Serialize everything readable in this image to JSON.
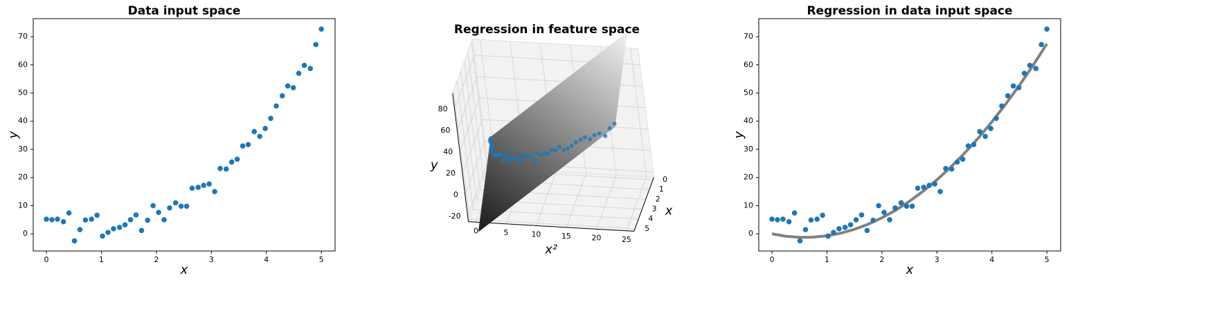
{
  "chart_data": [
    {
      "type": "scatter",
      "title": "Data input space",
      "xlabel": "x",
      "ylabel": "y",
      "color": "#1f77b4",
      "x": [
        0,
        0.1,
        0.2,
        0.31,
        0.41,
        0.51,
        0.61,
        0.71,
        0.82,
        0.92,
        1.02,
        1.12,
        1.22,
        1.33,
        1.43,
        1.53,
        1.63,
        1.73,
        1.84,
        1.94,
        2.04,
        2.14,
        2.24,
        2.35,
        2.45,
        2.55,
        2.65,
        2.76,
        2.86,
        2.96,
        3.06,
        3.16,
        3.27,
        3.37,
        3.47,
        3.57,
        3.67,
        3.78,
        3.88,
        3.98,
        4.08,
        4.18,
        4.29,
        4.39,
        4.49,
        4.59,
        4.69,
        4.8,
        4.9,
        5
      ],
      "values": [
        5.2,
        5,
        5.2,
        4.3,
        7.4,
        -2.5,
        1.5,
        4.9,
        5.2,
        6.6,
        -0.8,
        0.5,
        1.8,
        2.3,
        3.2,
        5,
        6.7,
        1.2,
        4.8,
        10,
        7.6,
        5,
        9.2,
        11,
        9.8,
        9.8,
        16.2,
        16.5,
        17.2,
        17.7,
        15,
        23.2,
        23,
        25.5,
        26.5,
        31.2,
        31.7,
        36.3,
        34.6,
        37.4,
        41,
        45.4,
        49,
        52.5,
        51.9,
        57,
        59.8,
        58.7,
        67.2,
        72.7
      ],
      "xlim": [
        -0.24,
        5.25
      ],
      "ylim": [
        -6.1,
        76.4
      ],
      "xticks": [
        0,
        1,
        2,
        3,
        4,
        5
      ],
      "yticks": [
        0,
        10,
        20,
        30,
        40,
        50,
        60,
        70
      ]
    },
    {
      "type": "scatter3d",
      "title": "Regression in feature space",
      "xlabel": "x",
      "x2label": "x²",
      "zlabel": "y",
      "color": "#1f77b4",
      "x": [
        0,
        0.1,
        0.2,
        0.31,
        0.41,
        0.51,
        0.61,
        0.71,
        0.82,
        0.92,
        1.02,
        1.12,
        1.22,
        1.33,
        1.43,
        1.53,
        1.63,
        1.73,
        1.84,
        1.94,
        2.04,
        2.14,
        2.24,
        2.35,
        2.45,
        2.55,
        2.65,
        2.76,
        2.86,
        2.96,
        3.06,
        3.16,
        3.27,
        3.37,
        3.47,
        3.57,
        3.67,
        3.78,
        3.88,
        3.98,
        4.08,
        4.18,
        4.29,
        4.39,
        4.49,
        4.59,
        4.69,
        4.8,
        4.9,
        5
      ],
      "values": [
        5.2,
        5,
        5.2,
        4.3,
        7.4,
        -2.5,
        1.5,
        4.9,
        5.2,
        6.6,
        -0.8,
        0.5,
        1.8,
        2.3,
        3.2,
        5,
        6.7,
        1.2,
        4.8,
        10,
        7.6,
        5,
        9.2,
        11,
        9.8,
        9.8,
        16.2,
        16.5,
        17.2,
        17.7,
        15,
        23.2,
        23,
        25.5,
        26.5,
        31.2,
        31.7,
        36.3,
        34.6,
        37.4,
        41,
        45.4,
        49,
        52.5,
        51.9,
        57,
        59.8,
        58.7,
        67.2,
        72.7
      ],
      "xlim": [
        -0.25,
        5.25
      ],
      "x2lim": [
        -1.25,
        26.25
      ],
      "zlim": [
        -25,
        95
      ],
      "xticks": [
        0,
        1,
        2,
        3,
        4,
        5
      ],
      "x2ticks": [
        0,
        5,
        10,
        15,
        20,
        25
      ],
      "zticks": [
        -20,
        0,
        20,
        40,
        60,
        80
      ]
    },
    {
      "type": "scatter",
      "title": "Regression in data input space",
      "xlabel": "x",
      "ylabel": "y",
      "color": "#1f77b4",
      "x": [
        0,
        0.1,
        0.2,
        0.31,
        0.41,
        0.51,
        0.61,
        0.71,
        0.82,
        0.92,
        1.02,
        1.12,
        1.22,
        1.33,
        1.43,
        1.53,
        1.63,
        1.73,
        1.84,
        1.94,
        2.04,
        2.14,
        2.24,
        2.35,
        2.45,
        2.55,
        2.65,
        2.76,
        2.86,
        2.96,
        3.06,
        3.16,
        3.27,
        3.37,
        3.47,
        3.57,
        3.67,
        3.78,
        3.88,
        3.98,
        4.08,
        4.18,
        4.29,
        4.39,
        4.49,
        4.59,
        4.69,
        4.8,
        4.9,
        5
      ],
      "values": [
        5.2,
        5,
        5.2,
        4.3,
        7.4,
        -2.5,
        1.5,
        4.9,
        5.2,
        6.6,
        -0.8,
        0.5,
        1.8,
        2.3,
        3.2,
        5,
        6.7,
        1.2,
        4.8,
        10,
        7.6,
        5,
        9.2,
        11,
        9.8,
        9.8,
        16.2,
        16.5,
        17.2,
        17.7,
        15,
        23.2,
        23,
        25.5,
        26.5,
        31.2,
        31.7,
        36.3,
        34.6,
        37.4,
        41,
        45.4,
        49,
        52.5,
        51.9,
        57,
        59.8,
        58.7,
        67.2,
        72.7
      ],
      "fit": {
        "color": "#808080",
        "x": [
          0,
          0.25,
          0.5,
          0.75,
          1,
          1.25,
          1.5,
          1.75,
          2,
          2.25,
          2.5,
          2.75,
          3,
          3.25,
          3.5,
          3.75,
          4,
          4.25,
          4.5,
          4.75,
          5
        ],
        "values": [
          0,
          -0.84,
          -1.24,
          -1.2,
          -0.71,
          0.22,
          1.6,
          3.42,
          5.68,
          8.39,
          11.54,
          15.13,
          19.17,
          23.65,
          28.58,
          33.95,
          39.76,
          46.02,
          52.72,
          59.86,
          67.45
        ]
      },
      "xlim": [
        -0.24,
        5.25
      ],
      "ylim": [
        -6.1,
        76.4
      ],
      "xticks": [
        0,
        1,
        2,
        3,
        4,
        5
      ],
      "yticks": [
        0,
        10,
        20,
        30,
        40,
        50,
        60,
        70
      ]
    }
  ]
}
